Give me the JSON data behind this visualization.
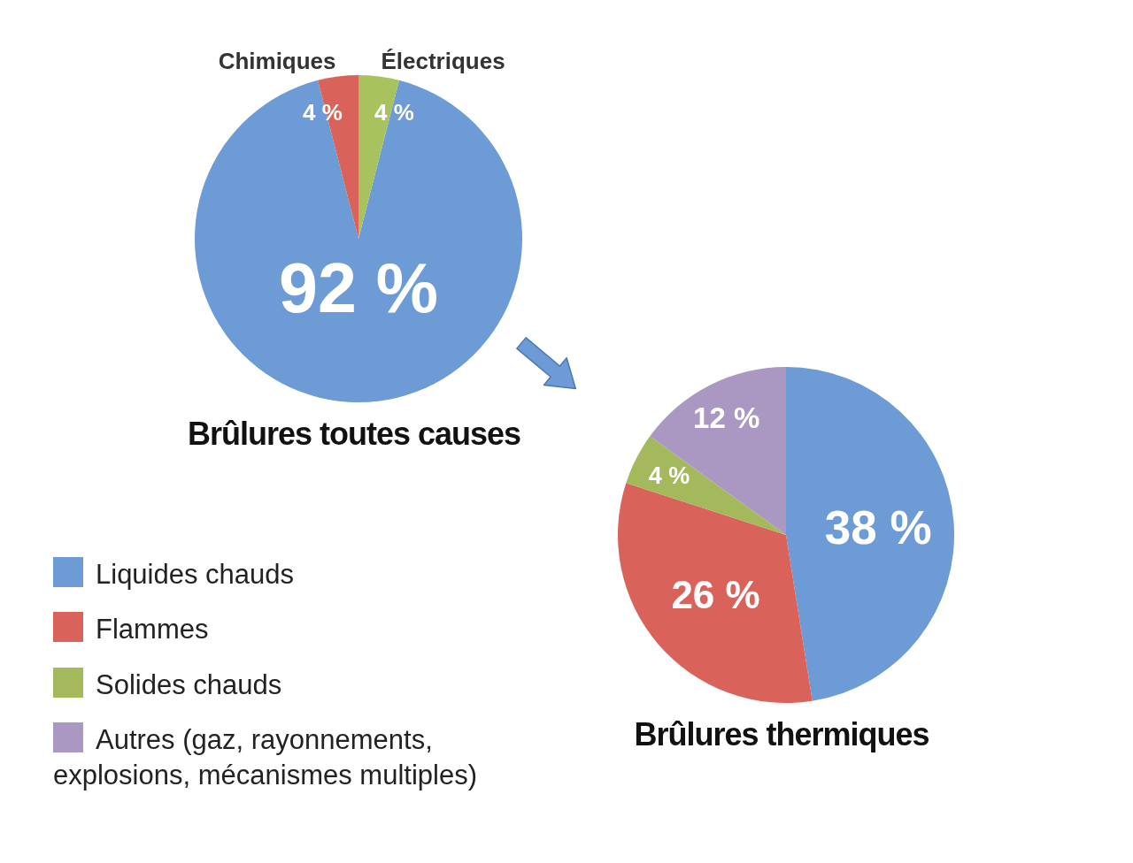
{
  "chart_data": [
    {
      "type": "pie",
      "title": "Brûlures toutes causes",
      "categories": [
        null,
        "Chimiques",
        "Électriques"
      ],
      "values": [
        92,
        4,
        4
      ],
      "colors": [
        "#6c9bd6",
        "#d9635b",
        "#a8c35e"
      ],
      "value_labels": [
        "92 %",
        "4 %",
        "4 %"
      ]
    },
    {
      "type": "pie",
      "title": "Brûlures thermiques",
      "categories": [
        "Liquides chauds",
        "Flammes",
        "Solides chauds",
        "Autres (gaz, rayonnements, explosions, mécanismes multiples)"
      ],
      "values": [
        38,
        26,
        4,
        12
      ],
      "colors": [
        "#6c9bd6",
        "#d9635b",
        "#a3b95c",
        "#aa98c2"
      ],
      "value_labels": [
        "38 %",
        "26 %",
        "4 %",
        "12 %"
      ],
      "legend": "left"
    }
  ]
}
